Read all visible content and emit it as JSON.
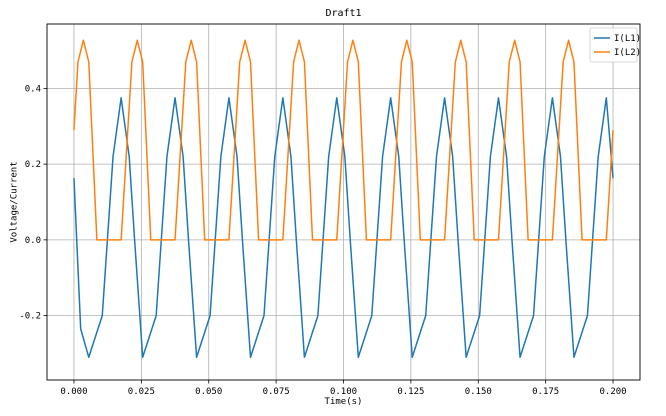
{
  "chart_data": {
    "type": "line",
    "title": "Draft1",
    "xlabel": "Time(s)",
    "ylabel": "Voltage/Current",
    "xlim": [
      -0.01,
      0.21
    ],
    "ylim": [
      -0.37,
      0.57
    ],
    "grid": true,
    "legend_position": "top-right",
    "x_ticks": [
      0.0,
      0.025,
      0.05,
      0.075,
      0.1,
      0.125,
      0.15,
      0.175,
      0.2
    ],
    "x_tick_labels": [
      "0.000",
      "0.025",
      "0.050",
      "0.075",
      "0.100",
      "0.125",
      "0.150",
      "0.175",
      "0.200"
    ],
    "y_ticks": [
      -0.2,
      0.0,
      0.2,
      0.4
    ],
    "y_tick_labels": [
      "-0.2",
      "0.0",
      "0.2",
      "0.4"
    ],
    "series": [
      {
        "name": "I(L1)",
        "color": "#1f77b4",
        "points": [
          [
            0,
            0.163
          ],
          [
            0.0025,
            -0.235
          ],
          [
            0.0055,
            -0.31
          ],
          [
            0.0105,
            -0.2
          ],
          [
            0.0145,
            0.22
          ],
          [
            0.0175,
            0.375
          ],
          [
            0.0205,
            0.22
          ],
          [
            0.0225,
            0.0
          ],
          [
            0.0255,
            -0.31
          ],
          [
            0.0305,
            -0.2
          ],
          [
            0.0345,
            0.22
          ],
          [
            0.0375,
            0.375
          ],
          [
            0.0405,
            0.22
          ],
          [
            0.0425,
            0.0
          ],
          [
            0.0455,
            -0.31
          ],
          [
            0.0505,
            -0.2
          ],
          [
            0.0545,
            0.22
          ],
          [
            0.0575,
            0.375
          ],
          [
            0.0605,
            0.22
          ],
          [
            0.0625,
            0.0
          ],
          [
            0.0655,
            -0.31
          ],
          [
            0.0705,
            -0.2
          ],
          [
            0.0745,
            0.22
          ],
          [
            0.0775,
            0.375
          ],
          [
            0.0805,
            0.22
          ],
          [
            0.0825,
            0.0
          ],
          [
            0.0855,
            -0.31
          ],
          [
            0.0905,
            -0.2
          ],
          [
            0.0945,
            0.22
          ],
          [
            0.0975,
            0.375
          ],
          [
            0.1005,
            0.22
          ],
          [
            0.1025,
            0.0
          ],
          [
            0.1055,
            -0.31
          ],
          [
            0.1105,
            -0.2
          ],
          [
            0.1145,
            0.22
          ],
          [
            0.1175,
            0.375
          ],
          [
            0.1205,
            0.22
          ],
          [
            0.1225,
            0.0
          ],
          [
            0.1255,
            -0.31
          ],
          [
            0.1305,
            -0.2
          ],
          [
            0.1345,
            0.22
          ],
          [
            0.1375,
            0.375
          ],
          [
            0.1405,
            0.22
          ],
          [
            0.1425,
            0.0
          ],
          [
            0.1455,
            -0.31
          ],
          [
            0.1505,
            -0.2
          ],
          [
            0.1545,
            0.22
          ],
          [
            0.1575,
            0.375
          ],
          [
            0.1605,
            0.22
          ],
          [
            0.1625,
            0.0
          ],
          [
            0.1655,
            -0.31
          ],
          [
            0.1705,
            -0.2
          ],
          [
            0.1745,
            0.22
          ],
          [
            0.1775,
            0.375
          ],
          [
            0.1805,
            0.22
          ],
          [
            0.1825,
            0.0
          ],
          [
            0.1855,
            -0.31
          ],
          [
            0.1905,
            -0.2
          ],
          [
            0.1945,
            0.22
          ],
          [
            0.1975,
            0.375
          ],
          [
            0.2,
            0.163
          ]
        ]
      },
      {
        "name": "I(L2)",
        "color": "#ff7f0e",
        "points": [
          [
            0,
            0.29
          ],
          [
            0.0015,
            0.47
          ],
          [
            0.0035,
            0.527
          ],
          [
            0.0055,
            0.47
          ],
          [
            0.0085,
            0.0
          ],
          [
            0.0175,
            0.0
          ],
          [
            0.0215,
            0.47
          ],
          [
            0.0235,
            0.527
          ],
          [
            0.0255,
            0.47
          ],
          [
            0.0285,
            0.0
          ],
          [
            0.0375,
            0.0
          ],
          [
            0.0415,
            0.47
          ],
          [
            0.0435,
            0.527
          ],
          [
            0.0455,
            0.47
          ],
          [
            0.0485,
            0.0
          ],
          [
            0.0575,
            0.0
          ],
          [
            0.0615,
            0.47
          ],
          [
            0.0635,
            0.527
          ],
          [
            0.0655,
            0.47
          ],
          [
            0.0685,
            0.0
          ],
          [
            0.0775,
            0.0
          ],
          [
            0.0815,
            0.47
          ],
          [
            0.0835,
            0.527
          ],
          [
            0.0855,
            0.47
          ],
          [
            0.0885,
            0.0
          ],
          [
            0.0975,
            0.0
          ],
          [
            0.1015,
            0.47
          ],
          [
            0.1035,
            0.527
          ],
          [
            0.1055,
            0.47
          ],
          [
            0.1085,
            0.0
          ],
          [
            0.1175,
            0.0
          ],
          [
            0.1215,
            0.47
          ],
          [
            0.1235,
            0.527
          ],
          [
            0.1255,
            0.47
          ],
          [
            0.1285,
            0.0
          ],
          [
            0.1375,
            0.0
          ],
          [
            0.1415,
            0.47
          ],
          [
            0.1435,
            0.527
          ],
          [
            0.1455,
            0.47
          ],
          [
            0.1485,
            0.0
          ],
          [
            0.1575,
            0.0
          ],
          [
            0.1615,
            0.47
          ],
          [
            0.1635,
            0.527
          ],
          [
            0.1655,
            0.47
          ],
          [
            0.1685,
            0.0
          ],
          [
            0.1775,
            0.0
          ],
          [
            0.1815,
            0.47
          ],
          [
            0.1835,
            0.527
          ],
          [
            0.1855,
            0.47
          ],
          [
            0.1885,
            0.0
          ],
          [
            0.1975,
            0.0
          ],
          [
            0.2,
            0.29
          ]
        ]
      }
    ]
  }
}
